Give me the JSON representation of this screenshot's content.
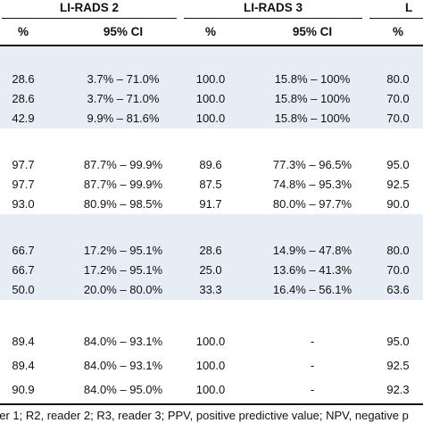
{
  "header": {
    "groups": [
      "LI-RADS 2",
      "LI-RADS 3",
      "L"
    ],
    "subheaders": [
      "%",
      "95% CI",
      "%",
      "95% CI",
      "%"
    ]
  },
  "sections": [
    {
      "rows": [
        [
          "28.6",
          "3.7% – 71.0%",
          "100.0",
          "15.8% – 100%",
          "80.0"
        ],
        [
          "28.6",
          "3.7% – 71.0%",
          "100.0",
          "15.8% – 100%",
          "70.0"
        ],
        [
          "42.9",
          "9.9% – 81.6%",
          "100.0",
          "15.8% – 100%",
          "70.0"
        ]
      ]
    },
    {
      "rows": [
        [
          "97.7",
          "87.7% – 99.9%",
          "89.6",
          "77.3% – 96.5%",
          "95.0"
        ],
        [
          "97.7",
          "87.7% – 99.9%",
          "87.5",
          "74.8% – 95.3%",
          "92.5"
        ],
        [
          "93.0",
          "80.9% – 98.5%",
          "91.7",
          "80.0% – 97.7%",
          "90.0"
        ]
      ]
    },
    {
      "rows": [
        [
          "66.7",
          "17.2% – 95.1%",
          "28.6",
          "14.9% – 47.8%",
          "80.0"
        ],
        [
          "66.7",
          "17.2% – 95.1%",
          "25.0",
          "13.6% – 41.3%",
          "70.0"
        ],
        [
          "50.0",
          "20.0% – 80.0%",
          "33.3",
          "16.4% – 56.1%",
          "63.6"
        ]
      ]
    },
    {
      "rows": [
        [
          "89.4",
          "84.0% – 93.1%",
          "100.0",
          "-",
          "95.0"
        ],
        [
          "89.4",
          "84.0% – 93.1%",
          "100.0",
          "-",
          "92.5"
        ],
        [
          "90.9",
          "84.0% – 95.0%",
          "100.0",
          "-",
          "92.3"
        ]
      ]
    }
  ],
  "footer": "der 1; R2, reader 2; R3, reader 3; PPV, positive predictive value; NPV, negative p",
  "colors": {
    "row_shade": "#e6edf4",
    "rule": "#111111"
  }
}
